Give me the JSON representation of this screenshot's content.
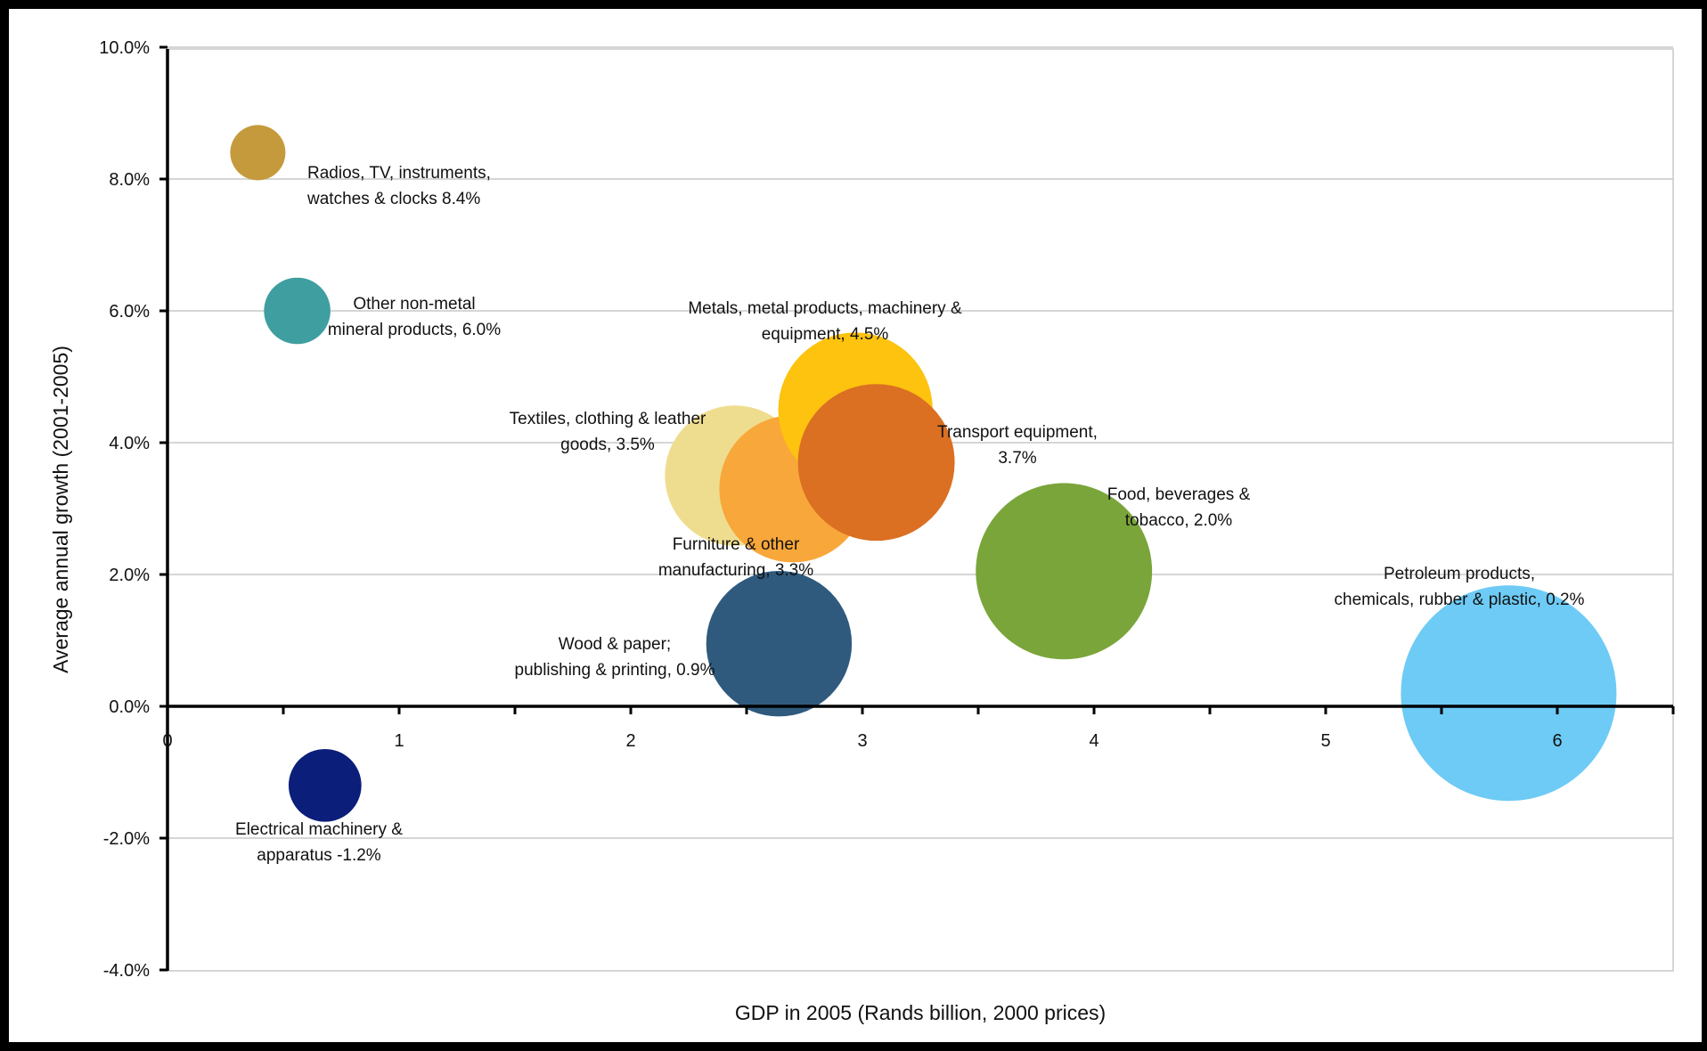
{
  "chart_data": {
    "type": "scatter",
    "subtype": "bubble",
    "title": "",
    "xlabel": "GDP in 2005 (Rands billion, 2000 prices)",
    "ylabel": "Average annual growth (2001-2005)",
    "xlim": [
      0,
      6.5
    ],
    "ylim": [
      -4.0,
      10.0
    ],
    "x_ticks": [
      0,
      1,
      2,
      3,
      4,
      5,
      6
    ],
    "y_ticks": [
      -4,
      -2,
      0,
      2,
      4,
      6,
      8,
      10
    ],
    "y_tick_labels": [
      "-4.0%",
      "-2.0%",
      "0.0%",
      "2.0%",
      "4.0%",
      "6.0%",
      "8.0%",
      "10.0%"
    ],
    "grid": "horizontal",
    "legend": "none",
    "points": [
      {
        "id": "radios",
        "label_lines": [
          "Radios, TV, instruments,",
          "watches & clocks  8.4%"
        ],
        "x": 0.39,
        "y": 8.4,
        "size": 0.38,
        "color": "#c49a3c"
      },
      {
        "id": "nonmetal",
        "label_lines": [
          "Other non-metal",
          "mineral products, 6.0%"
        ],
        "x": 0.56,
        "y": 6.0,
        "size": 0.55,
        "color": "#3f9ea0"
      },
      {
        "id": "electrical",
        "label_lines": [
          "Electrical machinery &",
          "apparatus -1.2%"
        ],
        "x": 0.68,
        "y": -1.2,
        "size": 0.66,
        "color": "#0b1e7a"
      },
      {
        "id": "textiles",
        "label_lines": [
          "Textiles, clothing & leather",
          "goods, 3.5%"
        ],
        "x": 2.45,
        "y": 3.5,
        "size": 2.45,
        "color": "#efdd8f"
      },
      {
        "id": "furniture",
        "label_lines": [
          "Furniture & other",
          "manufacturing, 3.3%"
        ],
        "x": 2.7,
        "y": 3.3,
        "size": 2.7,
        "color": "#f8a73a"
      },
      {
        "id": "wood",
        "label_lines": [
          "Wood & paper;",
          "publishing & printing, 0.9%"
        ],
        "x": 2.64,
        "y": 0.95,
        "size": 2.64,
        "color": "#2f5a7e"
      },
      {
        "id": "metals",
        "label_lines": [
          "Metals, metal products, machinery &",
          "equipment, 4.5%"
        ],
        "x": 2.97,
        "y": 4.5,
        "size": 2.97,
        "color": "#fdc30e"
      },
      {
        "id": "transport",
        "label_lines": [
          "Transport equipment,",
          "3.7%"
        ],
        "x": 3.06,
        "y": 3.7,
        "size": 3.06,
        "color": "#db6f22"
      },
      {
        "id": "food",
        "label_lines": [
          "Food, beverages &",
          "tobacco, 2.0%"
        ],
        "x": 3.87,
        "y": 2.05,
        "size": 3.87,
        "color": "#7aa53a"
      },
      {
        "id": "petroleum",
        "label_lines": [
          "Petroleum products,",
          "chemicals, rubber & plastic, 0.2%"
        ],
        "x": 5.79,
        "y": 0.2,
        "size": 5.79,
        "color": "#6dcbf5"
      }
    ]
  }
}
